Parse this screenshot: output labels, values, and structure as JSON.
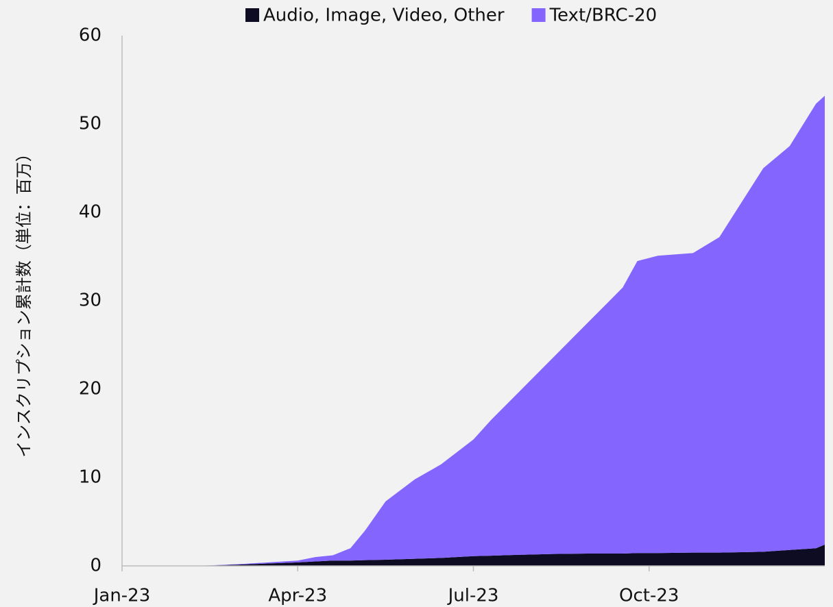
{
  "chart_data": {
    "type": "stacked_area",
    "ylabel": "インスクリプション累計数（単位：百万）",
    "x": [
      0,
      1.3,
      2,
      3,
      3.3,
      3.6,
      3.9,
      4.15,
      4.5,
      5,
      5.45,
      6,
      6.3,
      6.75,
      7.35,
      7.95,
      8.55,
      8.8,
      9.15,
      9.75,
      10.2,
      10.95,
      11.4,
      11.85,
      12
    ],
    "series": [
      {
        "name": "Audio, Image, Video, Other",
        "color": "#0d0c22",
        "values": [
          0,
          0,
          0.15,
          0.4,
          0.5,
          0.6,
          0.6,
          0.65,
          0.7,
          0.8,
          0.9,
          1.1,
          1.15,
          1.25,
          1.35,
          1.4,
          1.4,
          1.45,
          1.45,
          1.5,
          1.5,
          1.6,
          1.8,
          2.0,
          2.4
        ]
      },
      {
        "name": "Text/BRC-20",
        "color": "#8466ff",
        "values": [
          0,
          0,
          0.05,
          0.2,
          0.5,
          0.6,
          1.4,
          3.35,
          6.6,
          9.0,
          10.6,
          13.2,
          15.35,
          18.25,
          22.15,
          26.1,
          30.1,
          33.05,
          33.65,
          33.9,
          35.7,
          43.4,
          45.7,
          50.3,
          50.8
        ]
      }
    ],
    "xlim": [
      0,
      12
    ],
    "xticks": [
      {
        "value": 0,
        "label": "Jan-23"
      },
      {
        "value": 3,
        "label": "Apr-23"
      },
      {
        "value": 6,
        "label": "Jul-23"
      },
      {
        "value": 9,
        "label": "Oct-23"
      }
    ],
    "ylim": [
      0,
      60
    ],
    "yticks": [
      0,
      10,
      20,
      30,
      40,
      50,
      60
    ],
    "legend": "top"
  }
}
